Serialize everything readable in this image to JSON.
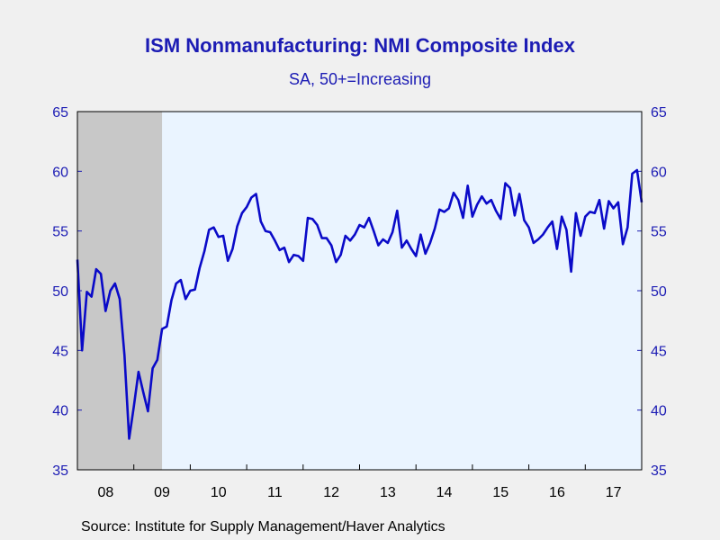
{
  "chart_data": {
    "type": "line",
    "title": "ISM Nonmanufacturing: NMI Composite Index",
    "subtitle": "SA, 50+=Increasing",
    "source": "Source:  Institute for Supply Management/Haver Analytics",
    "ylim": [
      35,
      65
    ],
    "yticks": [
      35,
      40,
      45,
      50,
      55,
      60,
      65
    ],
    "xlim": [
      "2008-01",
      "2017-12"
    ],
    "xticks": [
      "08",
      "09",
      "10",
      "11",
      "12",
      "13",
      "14",
      "15",
      "16",
      "17"
    ],
    "recession_shading": {
      "start": "2008-01",
      "end": "2009-06",
      "color": "#c8c8c8"
    },
    "plot_background": "#eaf4ff",
    "line_color": "#0a0ac8",
    "axis_color": "#1c1cb4",
    "grid": false,
    "series": [
      {
        "values": [
          [
            "2008-01",
            52.6
          ],
          [
            "2008-02",
            45.0
          ],
          [
            "2008-03",
            49.9
          ],
          [
            "2008-04",
            49.5
          ],
          [
            "2008-05",
            51.8
          ],
          [
            "2008-06",
            51.4
          ],
          [
            "2008-07",
            48.3
          ],
          [
            "2008-08",
            50.0
          ],
          [
            "2008-09",
            50.6
          ],
          [
            "2008-10",
            49.3
          ],
          [
            "2008-11",
            44.6
          ],
          [
            "2008-12",
            37.6
          ],
          [
            "2009-01",
            40.3
          ],
          [
            "2009-02",
            43.2
          ],
          [
            "2009-03",
            41.5
          ],
          [
            "2009-04",
            39.9
          ],
          [
            "2009-05",
            43.5
          ],
          [
            "2009-06",
            44.2
          ],
          [
            "2009-07",
            46.8
          ],
          [
            "2009-08",
            47.0
          ],
          [
            "2009-09",
            49.2
          ],
          [
            "2009-10",
            50.6
          ],
          [
            "2009-11",
            50.9
          ],
          [
            "2009-12",
            49.3
          ],
          [
            "2010-01",
            50.0
          ],
          [
            "2010-02",
            50.1
          ],
          [
            "2010-03",
            51.9
          ],
          [
            "2010-04",
            53.3
          ],
          [
            "2010-05",
            55.1
          ],
          [
            "2010-06",
            55.3
          ],
          [
            "2010-07",
            54.5
          ],
          [
            "2010-08",
            54.6
          ],
          [
            "2010-09",
            52.5
          ],
          [
            "2010-10",
            53.5
          ],
          [
            "2010-11",
            55.4
          ],
          [
            "2010-12",
            56.5
          ],
          [
            "2011-01",
            57.0
          ],
          [
            "2011-02",
            57.8
          ],
          [
            "2011-03",
            58.1
          ],
          [
            "2011-04",
            55.8
          ],
          [
            "2011-05",
            55.0
          ],
          [
            "2011-06",
            54.9
          ],
          [
            "2011-07",
            54.2
          ],
          [
            "2011-08",
            53.4
          ],
          [
            "2011-09",
            53.6
          ],
          [
            "2011-10",
            52.4
          ],
          [
            "2011-11",
            53.0
          ],
          [
            "2011-12",
            52.9
          ],
          [
            "2012-01",
            52.5
          ],
          [
            "2012-02",
            56.1
          ],
          [
            "2012-03",
            56.0
          ],
          [
            "2012-04",
            55.5
          ],
          [
            "2012-05",
            54.4
          ],
          [
            "2012-06",
            54.4
          ],
          [
            "2012-07",
            53.8
          ],
          [
            "2012-08",
            52.4
          ],
          [
            "2012-09",
            53.0
          ],
          [
            "2012-10",
            54.6
          ],
          [
            "2012-11",
            54.2
          ],
          [
            "2012-12",
            54.7
          ],
          [
            "2013-01",
            55.5
          ],
          [
            "2013-02",
            55.3
          ],
          [
            "2013-03",
            56.1
          ],
          [
            "2013-04",
            55.0
          ],
          [
            "2013-05",
            53.8
          ],
          [
            "2013-06",
            54.3
          ],
          [
            "2013-07",
            54.0
          ],
          [
            "2013-08",
            54.9
          ],
          [
            "2013-09",
            56.7
          ],
          [
            "2013-10",
            53.6
          ],
          [
            "2013-11",
            54.2
          ],
          [
            "2013-12",
            53.5
          ],
          [
            "2014-01",
            52.9
          ],
          [
            "2014-02",
            54.7
          ],
          [
            "2014-03",
            53.1
          ],
          [
            "2014-04",
            54.0
          ],
          [
            "2014-05",
            55.2
          ],
          [
            "2014-06",
            56.8
          ],
          [
            "2014-07",
            56.6
          ],
          [
            "2014-08",
            56.9
          ],
          [
            "2014-09",
            58.2
          ],
          [
            "2014-10",
            57.6
          ],
          [
            "2014-11",
            56.1
          ],
          [
            "2014-12",
            58.8
          ],
          [
            "2015-01",
            56.2
          ],
          [
            "2015-02",
            57.2
          ],
          [
            "2015-03",
            57.9
          ],
          [
            "2015-04",
            57.3
          ],
          [
            "2015-05",
            57.6
          ],
          [
            "2015-06",
            56.7
          ],
          [
            "2015-07",
            56.0
          ],
          [
            "2015-08",
            59.0
          ],
          [
            "2015-09",
            58.6
          ],
          [
            "2015-10",
            56.3
          ],
          [
            "2015-11",
            58.1
          ],
          [
            "2015-12",
            55.9
          ],
          [
            "2016-01",
            55.3
          ],
          [
            "2016-02",
            54.0
          ],
          [
            "2016-03",
            54.3
          ],
          [
            "2016-04",
            54.7
          ],
          [
            "2016-05",
            55.3
          ],
          [
            "2016-06",
            55.8
          ],
          [
            "2016-07",
            53.5
          ],
          [
            "2016-08",
            56.2
          ],
          [
            "2016-09",
            55.1
          ],
          [
            "2016-10",
            51.6
          ],
          [
            "2016-11",
            56.5
          ],
          [
            "2016-12",
            54.6
          ],
          [
            "2017-01",
            56.2
          ],
          [
            "2017-02",
            56.6
          ],
          [
            "2017-03",
            56.5
          ],
          [
            "2017-04",
            57.6
          ],
          [
            "2017-05",
            55.2
          ],
          [
            "2017-06",
            57.5
          ],
          [
            "2017-07",
            56.9
          ],
          [
            "2017-08",
            57.4
          ],
          [
            "2017-09",
            53.9
          ],
          [
            "2017-10",
            55.3
          ],
          [
            "2017-11",
            59.8
          ],
          [
            "2017-12",
            60.1
          ],
          [
            "2018-01",
            57.4
          ]
        ]
      }
    ]
  }
}
